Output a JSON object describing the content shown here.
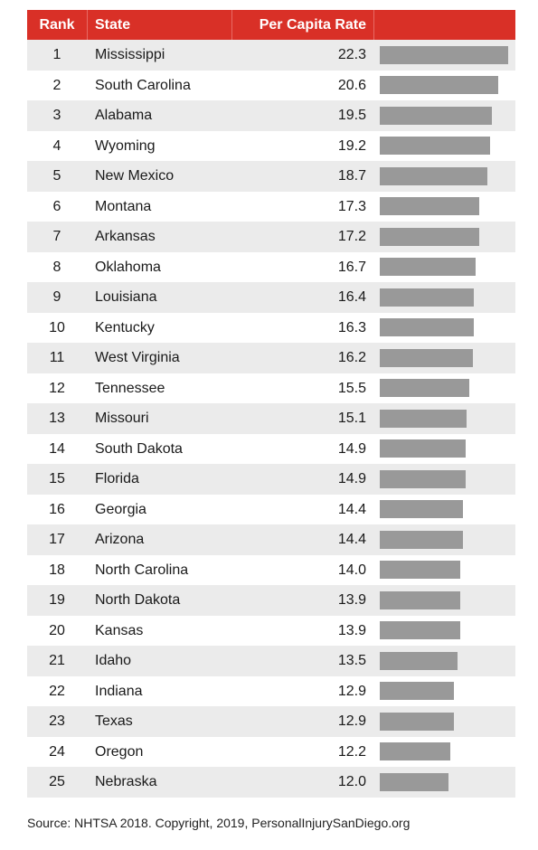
{
  "header": {
    "rank": "Rank",
    "state": "State",
    "rate": "Per Capita Rate"
  },
  "chart_data": {
    "type": "table",
    "columns": [
      "Rank",
      "State",
      "Per Capita Rate"
    ],
    "bar_max": 22.3,
    "rows": [
      {
        "rank": "1",
        "state": "Mississippi",
        "rate": "22.3",
        "value": 22.3
      },
      {
        "rank": "2",
        "state": "South Carolina",
        "rate": "20.6",
        "value": 20.6
      },
      {
        "rank": "3",
        "state": "Alabama",
        "rate": "19.5",
        "value": 19.5
      },
      {
        "rank": "4",
        "state": "Wyoming",
        "rate": "19.2",
        "value": 19.2
      },
      {
        "rank": "5",
        "state": "New Mexico",
        "rate": "18.7",
        "value": 18.7
      },
      {
        "rank": "6",
        "state": "Montana",
        "rate": "17.3",
        "value": 17.3
      },
      {
        "rank": "7",
        "state": "Arkansas",
        "rate": "17.2",
        "value": 17.2
      },
      {
        "rank": "8",
        "state": "Oklahoma",
        "rate": "16.7",
        "value": 16.7
      },
      {
        "rank": "9",
        "state": "Louisiana",
        "rate": "16.4",
        "value": 16.4
      },
      {
        "rank": "10",
        "state": "Kentucky",
        "rate": "16.3",
        "value": 16.3
      },
      {
        "rank": "11",
        "state": "West Virginia",
        "rate": "16.2",
        "value": 16.2
      },
      {
        "rank": "12",
        "state": "Tennessee",
        "rate": "15.5",
        "value": 15.5
      },
      {
        "rank": "13",
        "state": "Missouri",
        "rate": "15.1",
        "value": 15.1
      },
      {
        "rank": "14",
        "state": "South Dakota",
        "rate": "14.9",
        "value": 14.9
      },
      {
        "rank": "15",
        "state": "Florida",
        "rate": "14.9",
        "value": 14.9
      },
      {
        "rank": "16",
        "state": "Georgia",
        "rate": "14.4",
        "value": 14.4
      },
      {
        "rank": "17",
        "state": "Arizona",
        "rate": "14.4",
        "value": 14.4
      },
      {
        "rank": "18",
        "state": "North Carolina",
        "rate": "14.0",
        "value": 14.0
      },
      {
        "rank": "19",
        "state": "North Dakota",
        "rate": "13.9",
        "value": 13.9
      },
      {
        "rank": "20",
        "state": "Kansas",
        "rate": "13.9",
        "value": 13.9
      },
      {
        "rank": "21",
        "state": "Idaho",
        "rate": "13.5",
        "value": 13.5
      },
      {
        "rank": "22",
        "state": "Indiana",
        "rate": "12.9",
        "value": 12.9
      },
      {
        "rank": "23",
        "state": "Texas",
        "rate": "12.9",
        "value": 12.9
      },
      {
        "rank": "24",
        "state": "Oregon",
        "rate": "12.2",
        "value": 12.2
      },
      {
        "rank": "25",
        "state": "Nebraska",
        "rate": "12.0",
        "value": 12.0
      }
    ]
  },
  "colors": {
    "header_bg": "#d93027",
    "bar": "#999999",
    "row_alt": "#ebebeb"
  },
  "source": "Source: NHTSA 2018. Copyright, 2019, PersonalInjurySanDiego.org"
}
